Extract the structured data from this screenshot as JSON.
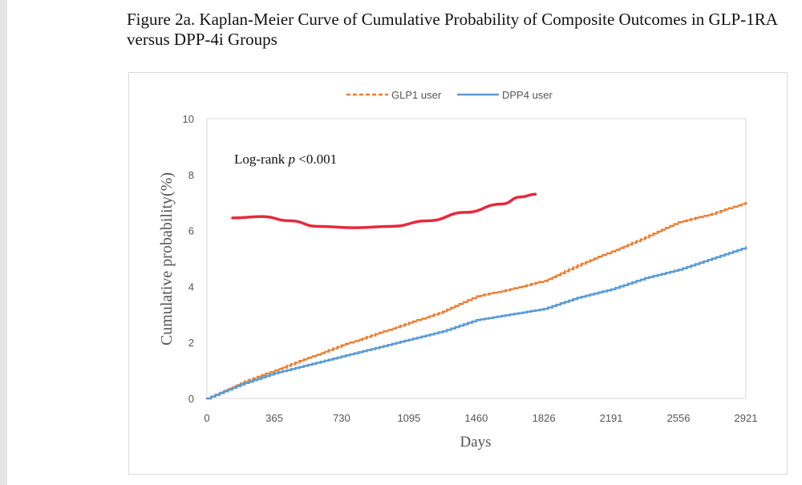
{
  "figure_title": "Figure 2a. Kaplan-Meier Curve of Cumulative Probability of Composite Outcomes in GLP-1RA versus DPP-4i Groups",
  "chart_data": {
    "type": "line",
    "title": "",
    "xlabel": "Days",
    "ylabel": "Cumulative probability(%)",
    "xlim": [
      0,
      2921
    ],
    "ylim": [
      0,
      10
    ],
    "xticks": [
      "0",
      "365",
      "730",
      "1095",
      "1460",
      "1826",
      "2191",
      "2556",
      "2921"
    ],
    "yticks": [
      "0",
      "2",
      "4",
      "6",
      "8",
      "10"
    ],
    "grid": false,
    "legend_position": "top",
    "annotation": "Log-rank p <0.001",
    "annotation_parts": {
      "prefix": "Log-rank ",
      "italic": "p",
      "suffix": " <0.001"
    },
    "series": [
      {
        "name": "GLP1 user",
        "color": "#ed7d31",
        "style": "dashed",
        "x": [
          0,
          183,
          365,
          548,
          730,
          913,
          1095,
          1278,
          1460,
          1643,
          1826,
          2008,
          2191,
          2374,
          2556,
          2738,
          2921
        ],
        "y": [
          0,
          0.55,
          1.0,
          1.45,
          1.9,
          2.3,
          2.7,
          3.1,
          3.65,
          3.9,
          4.2,
          4.75,
          5.25,
          5.75,
          6.3,
          6.6,
          7.0
        ]
      },
      {
        "name": "DPP4  user",
        "color": "#5b9bd5",
        "style": "solid",
        "x": [
          0,
          183,
          365,
          548,
          730,
          913,
          1095,
          1278,
          1460,
          1643,
          1826,
          2008,
          2191,
          2374,
          2556,
          2738,
          2921
        ],
        "y": [
          0,
          0.5,
          0.9,
          1.2,
          1.5,
          1.8,
          2.1,
          2.4,
          2.8,
          3.0,
          3.2,
          3.6,
          3.9,
          4.3,
          4.6,
          5.0,
          5.4
        ]
      },
      {
        "color": "#e8283c",
        "style": "freehand",
        "x": [
          139,
          300,
          450,
          600,
          800,
          1000,
          1200,
          1400,
          1600,
          1700,
          1780
        ],
        "y": [
          6.45,
          6.5,
          6.35,
          6.15,
          6.1,
          6.15,
          6.35,
          6.65,
          6.95,
          7.2,
          7.3
        ]
      }
    ]
  }
}
